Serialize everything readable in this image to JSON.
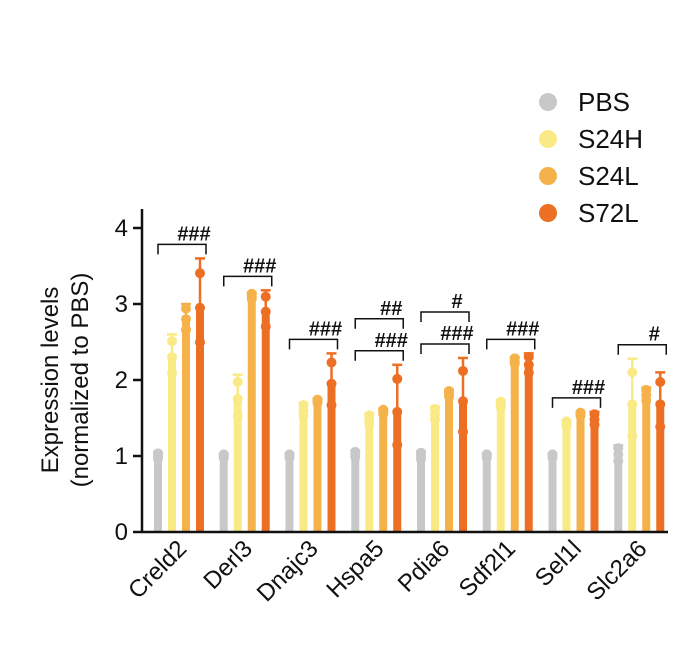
{
  "chart_data": {
    "type": "bar",
    "ylabel_line1": "Expression levels",
    "ylabel_line2": "(normalized to PBS)",
    "ylim": [
      0,
      4.2
    ],
    "yticks": [
      0,
      1,
      2,
      3,
      4
    ],
    "categories": [
      "Creld2",
      "Derl3",
      "Dnajc3",
      "Hspa5",
      "Pdia6",
      "Sdf2l1",
      "Sel1l",
      "Slc2a6"
    ],
    "series": [
      {
        "name": "PBS",
        "color": "#c8c8c8",
        "values": [
          1.0,
          1.0,
          1.0,
          1.02,
          1.0,
          1.0,
          1.0,
          1.02
        ],
        "errors": [
          0.05,
          0.03,
          0.03,
          0.05,
          0.06,
          0.03,
          0.03,
          0.12
        ]
      },
      {
        "name": "S24H",
        "color": "#faea86",
        "values": [
          2.3,
          1.75,
          1.6,
          1.48,
          1.55,
          1.68,
          1.42,
          1.68
        ],
        "errors": [
          0.3,
          0.32,
          0.1,
          0.08,
          0.1,
          0.05,
          0.05,
          0.6
        ]
      },
      {
        "name": "S24L",
        "color": "#f5b24a",
        "values": [
          2.8,
          3.1,
          1.72,
          1.58,
          1.82,
          2.25,
          1.55,
          1.8
        ],
        "errors": [
          0.2,
          0.05,
          0.03,
          0.04,
          0.05,
          0.05,
          0.03,
          0.1
        ]
      },
      {
        "name": "S72L",
        "color": "#ec6f24",
        "values": [
          2.95,
          2.9,
          1.95,
          1.58,
          1.72,
          2.2,
          1.48,
          1.68
        ],
        "errors": [
          0.65,
          0.28,
          0.4,
          0.62,
          0.57,
          0.15,
          0.1,
          0.42
        ]
      }
    ],
    "significance": [
      {
        "category": "Creld2",
        "label": "###"
      },
      {
        "category": "Derl3",
        "label": "###"
      },
      {
        "category": "Dnajc3",
        "label": "###"
      },
      {
        "category": "Hspa5",
        "label": "###"
      },
      {
        "category": "Hspa5",
        "label": "##"
      },
      {
        "category": "Pdia6",
        "label": "###"
      },
      {
        "category": "Pdia6",
        "label": "#"
      },
      {
        "category": "Sdf2l1",
        "label": "###"
      },
      {
        "category": "Sel1l",
        "label": "###"
      },
      {
        "category": "Slc2a6",
        "label": "#"
      }
    ],
    "legend_position": "top-right",
    "grid": false
  }
}
